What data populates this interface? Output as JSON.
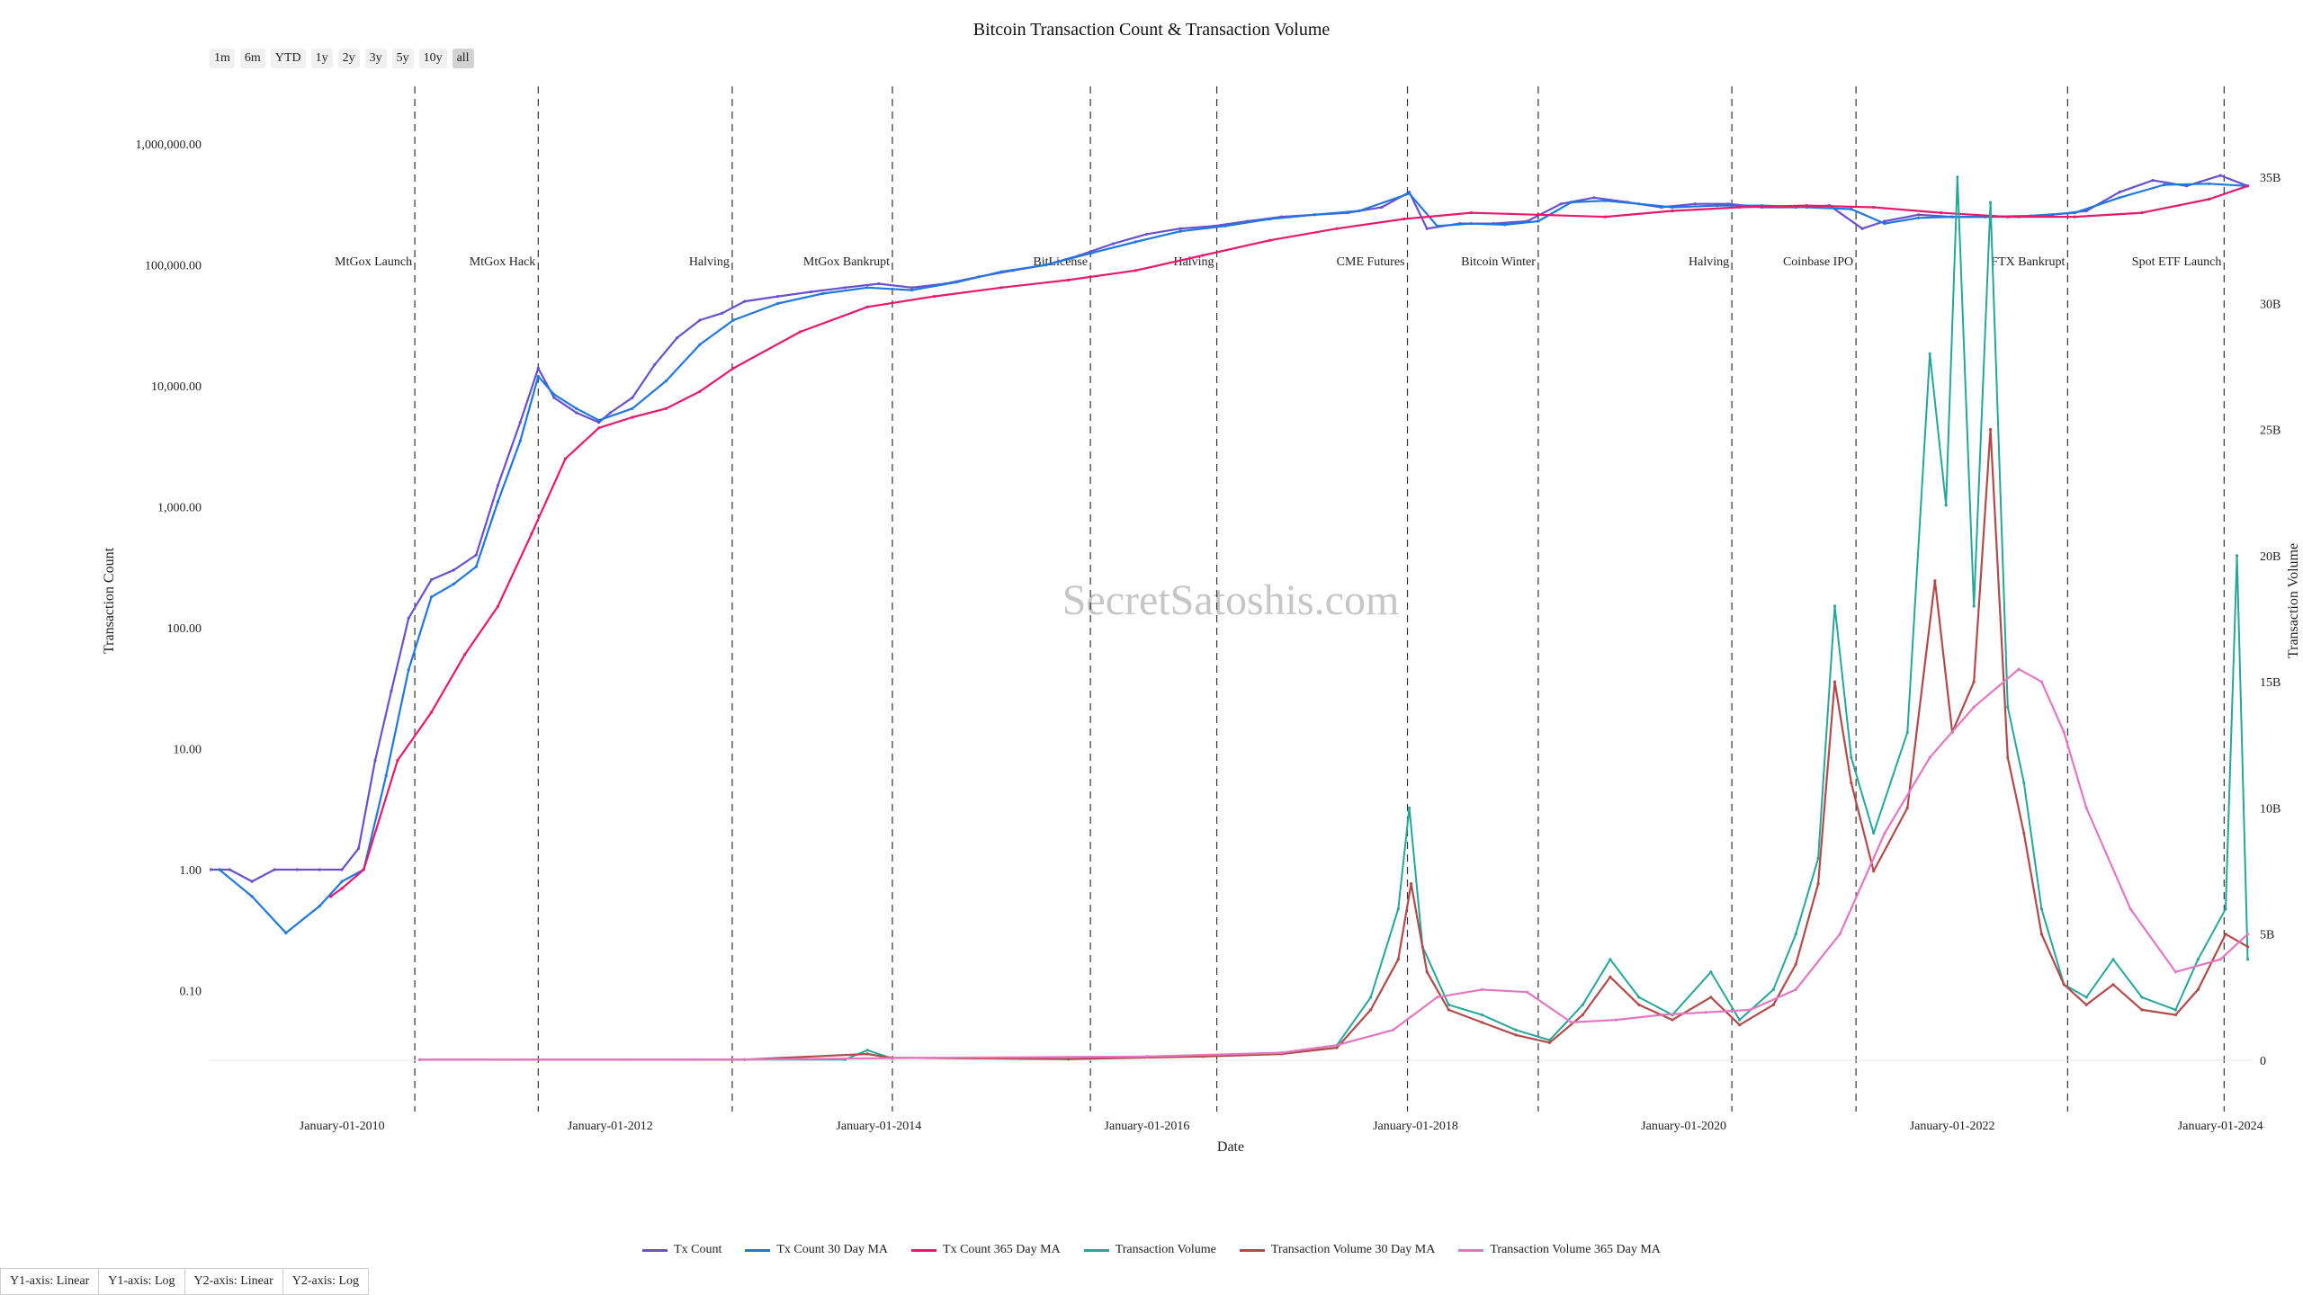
{
  "title": "Bitcoin Transaction Count & Transaction Volume",
  "range_buttons": [
    {
      "label": "1m",
      "active": false
    },
    {
      "label": "6m",
      "active": false
    },
    {
      "label": "YTD",
      "active": false
    },
    {
      "label": "1y",
      "active": false
    },
    {
      "label": "2y",
      "active": false
    },
    {
      "label": "3y",
      "active": false
    },
    {
      "label": "5y",
      "active": false
    },
    {
      "label": "10y",
      "active": false
    },
    {
      "label": "all",
      "active": true
    }
  ],
  "axis_buttons": [
    "Y1-axis: Linear",
    "Y1-axis: Log",
    "Y2-axis: Linear",
    "Y2-axis: Log"
  ],
  "watermark": "SecretSatoshis.com",
  "chart_data": {
    "type": "line",
    "title": "Bitcoin Transaction Count & Transaction Volume",
    "xlabel": "Date",
    "ylabel": "Transaction Count",
    "y2label": "Transaction Volume",
    "xlim": [
      "2009-01-03",
      "2024-03-31"
    ],
    "y_scale": "log",
    "y_ticks": [
      "0.10",
      "1.00",
      "10.00",
      "100.00",
      "1,000.00",
      "10,000.00",
      "100,000.00",
      "1,000,000.00"
    ],
    "y_tick_values": [
      0.1,
      1,
      10,
      100,
      1000,
      10000,
      100000,
      1000000
    ],
    "y2_ticks": [
      "0",
      "5B",
      "10B",
      "15B",
      "20B",
      "25B",
      "30B",
      "35B"
    ],
    "y2_tick_values": [
      0,
      5,
      10,
      15,
      20,
      25,
      30,
      35
    ],
    "y2_unit": "B",
    "x_ticks": [
      "January-01-2010",
      "January-01-2012",
      "January-01-2014",
      "January-01-2016",
      "January-01-2018",
      "January-01-2020",
      "January-01-2022",
      "January-01-2024"
    ],
    "x_tick_dates": [
      "2010-01-01",
      "2012-01-01",
      "2014-01-01",
      "2016-01-01",
      "2018-01-01",
      "2020-01-01",
      "2022-01-01",
      "2024-01-01"
    ],
    "grid": false,
    "legend_position": "bottom",
    "events": [
      {
        "date": "2010-07-18",
        "label": "MtGox Launch"
      },
      {
        "date": "2011-06-19",
        "label": "MtGox Hack"
      },
      {
        "date": "2012-11-28",
        "label": "Halving"
      },
      {
        "date": "2014-02-07",
        "label": "MtGox Bankrupt"
      },
      {
        "date": "2015-07-31",
        "label": "BitLicense"
      },
      {
        "date": "2016-07-09",
        "label": "Halving"
      },
      {
        "date": "2017-12-10",
        "label": "CME Futures"
      },
      {
        "date": "2018-12-01",
        "label": "Bitcoin Winter"
      },
      {
        "date": "2020-05-11",
        "label": "Halving"
      },
      {
        "date": "2021-04-14",
        "label": "Coinbase IPO"
      },
      {
        "date": "2022-11-11",
        "label": "FTX Bankrupt"
      },
      {
        "date": "2024-01-11",
        "label": "Spot ETF Launch"
      }
    ],
    "series": [
      {
        "name": "Tx Count",
        "axis": "y",
        "color": "#6a4fd0",
        "x": [
          "2009-01-09",
          "2009-03-01",
          "2009-05-01",
          "2009-07-01",
          "2009-09-01",
          "2009-11-01",
          "2010-01-01",
          "2010-02-15",
          "2010-04-01",
          "2010-05-15",
          "2010-07-01",
          "2010-09-01",
          "2010-11-01",
          "2011-01-01",
          "2011-03-01",
          "2011-05-01",
          "2011-06-19",
          "2011-08-01",
          "2011-10-01",
          "2011-12-01",
          "2012-01-01",
          "2012-03-01",
          "2012-05-01",
          "2012-07-01",
          "2012-09-01",
          "2012-11-01",
          "2013-01-01",
          "2013-04-01",
          "2013-07-01",
          "2013-10-01",
          "2014-01-01",
          "2014-04-01",
          "2014-07-01",
          "2014-10-01",
          "2015-01-01",
          "2015-04-01",
          "2015-07-01",
          "2015-10-01",
          "2016-01-01",
          "2016-04-01",
          "2016-07-01",
          "2016-10-01",
          "2017-01-01",
          "2017-04-01",
          "2017-07-01",
          "2017-10-01",
          "2017-12-15",
          "2018-02-01",
          "2018-05-01",
          "2018-08-01",
          "2018-11-01",
          "2019-02-01",
          "2019-05-01",
          "2019-08-01",
          "2019-11-01",
          "2020-02-01",
          "2020-05-01",
          "2020-08-01",
          "2020-11-01",
          "2021-02-01",
          "2021-05-01",
          "2021-07-01",
          "2021-10-01",
          "2022-01-01",
          "2022-04-01",
          "2022-07-01",
          "2022-10-01",
          "2023-01-01",
          "2023-04-01",
          "2023-07-01",
          "2023-10-01",
          "2024-01-01",
          "2024-03-15"
        ],
        "values": [
          1,
          1,
          0.8,
          1,
          1,
          1,
          1,
          1.5,
          8,
          30,
          120,
          250,
          300,
          400,
          1500,
          5000,
          14000,
          8000,
          6000,
          5000,
          6000,
          8000,
          15000,
          25000,
          35000,
          40000,
          50000,
          55000,
          60000,
          65000,
          70000,
          65000,
          70000,
          80000,
          90000,
          100000,
          120000,
          150000,
          180000,
          200000,
          210000,
          230000,
          250000,
          260000,
          270000,
          300000,
          400000,
          200000,
          220000,
          220000,
          230000,
          320000,
          360000,
          330000,
          300000,
          320000,
          320000,
          300000,
          300000,
          310000,
          200000,
          230000,
          260000,
          250000,
          250000,
          250000,
          260000,
          280000,
          400000,
          500000,
          450000,
          550000,
          450000
        ]
      },
      {
        "name": "Tx Count 30 Day MA",
        "axis": "y",
        "color": "#1f77e0",
        "x": [
          "2009-02-01",
          "2009-05-01",
          "2009-08-01",
          "2009-11-01",
          "2010-01-01",
          "2010-03-01",
          "2010-05-01",
          "2010-07-01",
          "2010-09-01",
          "2010-11-01",
          "2011-01-01",
          "2011-03-01",
          "2011-05-01",
          "2011-06-19",
          "2011-08-01",
          "2011-10-01",
          "2011-12-01",
          "2012-03-01",
          "2012-06-01",
          "2012-09-01",
          "2012-12-01",
          "2013-04-01",
          "2013-08-01",
          "2013-12-01",
          "2014-04-01",
          "2014-08-01",
          "2014-12-01",
          "2015-04-01",
          "2015-08-01",
          "2015-12-01",
          "2016-04-01",
          "2016-08-01",
          "2016-12-01",
          "2017-04-01",
          "2017-08-01",
          "2017-12-15",
          "2018-03-01",
          "2018-06-01",
          "2018-09-01",
          "2018-12-01",
          "2019-03-01",
          "2019-06-01",
          "2019-09-01",
          "2019-12-01",
          "2020-04-01",
          "2020-08-01",
          "2020-12-01",
          "2021-04-01",
          "2021-07-01",
          "2021-10-01",
          "2022-01-01",
          "2022-04-01",
          "2022-08-01",
          "2022-12-01",
          "2023-04-01",
          "2023-08-01",
          "2023-12-01",
          "2024-03-15"
        ],
        "values": [
          1,
          0.6,
          0.3,
          0.5,
          0.8,
          1.0,
          6,
          45,
          180,
          230,
          320,
          1100,
          3500,
          12000,
          8500,
          6500,
          5200,
          6500,
          11000,
          22000,
          35000,
          48000,
          58000,
          65000,
          62000,
          72000,
          88000,
          100000,
          125000,
          155000,
          190000,
          210000,
          240000,
          260000,
          280000,
          390000,
          210000,
          220000,
          215000,
          230000,
          330000,
          340000,
          320000,
          300000,
          310000,
          310000,
          300000,
          290000,
          220000,
          245000,
          250000,
          250000,
          255000,
          270000,
          360000,
          460000,
          470000,
          450000
        ]
      },
      {
        "name": "Tx Count 365 Day MA",
        "axis": "y",
        "color": "#e8186d",
        "x": [
          "2009-12-01",
          "2010-01-01",
          "2010-03-01",
          "2010-06-01",
          "2010-09-01",
          "2010-12-01",
          "2011-03-01",
          "2011-06-01",
          "2011-09-01",
          "2011-12-01",
          "2012-03-01",
          "2012-06-01",
          "2012-09-01",
          "2012-12-01",
          "2013-06-01",
          "2013-12-01",
          "2014-06-01",
          "2014-12-01",
          "2015-06-01",
          "2015-12-01",
          "2016-06-01",
          "2016-12-01",
          "2017-06-01",
          "2017-12-01",
          "2018-06-01",
          "2018-12-01",
          "2019-06-01",
          "2019-12-01",
          "2020-06-01",
          "2020-12-01",
          "2021-06-01",
          "2021-12-01",
          "2022-06-01",
          "2022-12-01",
          "2023-06-01",
          "2023-12-01",
          "2024-03-15"
        ],
        "values": [
          0.6,
          0.7,
          1.0,
          8,
          20,
          60,
          150,
          600,
          2500,
          4500,
          5500,
          6500,
          9000,
          14000,
          28000,
          45000,
          55000,
          65000,
          75000,
          90000,
          120000,
          160000,
          200000,
          240000,
          270000,
          260000,
          250000,
          280000,
          300000,
          310000,
          300000,
          270000,
          250000,
          250000,
          270000,
          350000,
          450000
        ]
      },
      {
        "name": "Transaction Volume",
        "axis": "y2",
        "color": "#26a69a",
        "x": [
          "2010-08-01",
          "2013-01-01",
          "2013-10-01",
          "2013-12-01",
          "2014-02-01",
          "2015-06-01",
          "2016-01-01",
          "2016-06-01",
          "2017-01-01",
          "2017-06-01",
          "2017-09-01",
          "2017-11-15",
          "2017-12-15",
          "2018-01-20",
          "2018-04-01",
          "2018-07-01",
          "2018-10-01",
          "2019-01-01",
          "2019-04-01",
          "2019-06-15",
          "2019-09-01",
          "2019-12-01",
          "2020-03-15",
          "2020-06-01",
          "2020-09-01",
          "2020-11-01",
          "2021-01-01",
          "2021-02-15",
          "2021-04-01",
          "2021-06-01",
          "2021-09-01",
          "2021-11-01",
          "2021-12-15",
          "2022-01-15",
          "2022-03-01",
          "2022-04-15",
          "2022-06-01",
          "2022-07-15",
          "2022-09-01",
          "2022-11-01",
          "2023-01-01",
          "2023-03-15",
          "2023-06-01",
          "2023-09-01",
          "2023-11-01",
          "2024-01-15",
          "2024-02-15",
          "2024-03-15"
        ],
        "values": [
          0.02,
          0.03,
          0.03,
          0.4,
          0.1,
          0.05,
          0.15,
          0.2,
          0.3,
          0.6,
          2.5,
          6,
          10,
          4.5,
          2.2,
          1.8,
          1.2,
          0.8,
          2.2,
          4,
          2.5,
          1.8,
          3.5,
          1.6,
          2.8,
          5,
          8,
          18,
          12,
          9,
          13,
          28,
          22,
          35,
          18,
          34,
          14,
          11,
          6,
          3,
          2.5,
          4,
          2.5,
          2,
          4,
          6,
          20,
          4
        ]
      },
      {
        "name": "Transaction Volume 30 Day MA",
        "axis": "y2",
        "color": "#b24a4a",
        "x": [
          "2010-08-01",
          "2013-01-01",
          "2013-12-01",
          "2014-02-01",
          "2015-06-01",
          "2016-06-01",
          "2017-01-01",
          "2017-06-01",
          "2017-09-01",
          "2017-11-15",
          "2017-12-20",
          "2018-02-01",
          "2018-04-01",
          "2018-07-01",
          "2018-10-01",
          "2019-01-01",
          "2019-04-01",
          "2019-06-15",
          "2019-09-01",
          "2019-12-01",
          "2020-03-15",
          "2020-06-01",
          "2020-09-01",
          "2020-11-01",
          "2021-01-01",
          "2021-02-15",
          "2021-04-01",
          "2021-06-01",
          "2021-09-01",
          "2021-11-15",
          "2022-01-01",
          "2022-03-01",
          "2022-04-15",
          "2022-06-01",
          "2022-07-15",
          "2022-09-01",
          "2022-11-01",
          "2023-01-01",
          "2023-03-15",
          "2023-06-01",
          "2023-09-01",
          "2023-11-01",
          "2024-01-15",
          "2024-03-15"
        ],
        "values": [
          0.02,
          0.03,
          0.25,
          0.1,
          0.05,
          0.15,
          0.25,
          0.5,
          2,
          4,
          7,
          3.5,
          2,
          1.5,
          1,
          0.7,
          1.8,
          3.3,
          2.2,
          1.6,
          2.5,
          1.4,
          2.2,
          3.8,
          7,
          15,
          11,
          7.5,
          10,
          19,
          13,
          15,
          25,
          12,
          9,
          5,
          3,
          2.2,
          3,
          2,
          1.8,
          2.8,
          5,
          4.5
        ]
      },
      {
        "name": "Transaction Volume 365 Day MA",
        "axis": "y2",
        "color": "#e377c2",
        "x": [
          "2010-08-01",
          "2013-01-01",
          "2014-06-01",
          "2016-01-01",
          "2017-01-01",
          "2017-06-01",
          "2017-11-01",
          "2018-03-01",
          "2018-07-01",
          "2018-11-01",
          "2019-03-01",
          "2019-07-01",
          "2019-11-01",
          "2020-03-01",
          "2020-07-01",
          "2020-11-01",
          "2021-03-01",
          "2021-07-01",
          "2021-11-01",
          "2022-03-01",
          "2022-07-01",
          "2022-09-01",
          "2022-11-01",
          "2023-01-01",
          "2023-05-01",
          "2023-09-01",
          "2024-01-01",
          "2024-03-15"
        ],
        "values": [
          0.02,
          0.03,
          0.1,
          0.15,
          0.3,
          0.6,
          1.2,
          2.5,
          2.8,
          2.7,
          1.5,
          1.6,
          1.8,
          1.9,
          2.0,
          2.8,
          5,
          9,
          12,
          14,
          15.5,
          15,
          13,
          10,
          6,
          3.5,
          4,
          5
        ]
      }
    ]
  }
}
